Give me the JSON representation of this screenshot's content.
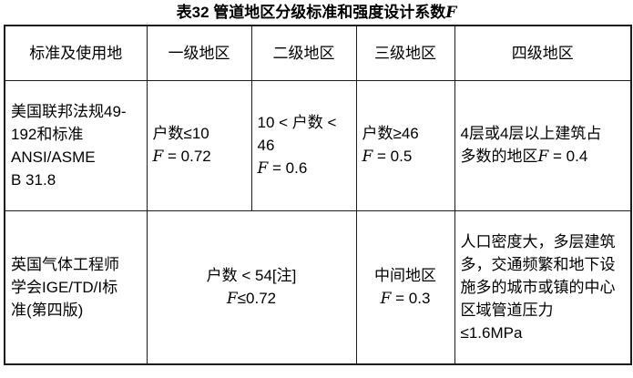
{
  "title": "表32 管道地区分级标准和强度设计系数F",
  "table": {
    "headers": [
      "标准及使用地",
      "一级地区",
      "二级地区",
      "三级地区",
      "四级地区"
    ],
    "rows": [
      {
        "standard": "美国联邦法规49-\n192和标准\nANSI/ASME\nB 31.8",
        "cells": [
          {
            "text": "户数≤10\nF = 0.72"
          },
          {
            "text": "10 < 户数 <\n46\nF = 0.6"
          },
          {
            "text": "户数≥46\nF = 0.5"
          },
          {
            "text": "4层或4层以上建筑占\n多数的地区F = 0.4"
          }
        ]
      },
      {
        "standard": "英国气体工程师\n学会IGE/TD/I标\n准(第四版)",
        "cells": [
          {
            "text": "户数 < 54[注]\nF≤0.72",
            "colspan": 2
          },
          {
            "text": "中间地区\nF = 0.3"
          },
          {
            "text": "人口密度大，多层建筑\n多，交通频繁和地下设\n施多的城市或镇的中心\n区域管道压力\n≤1.6MPa"
          }
        ]
      }
    ]
  },
  "colors": {
    "border": "#1c1c1c",
    "text": "#000000",
    "background": "#ffffff"
  }
}
